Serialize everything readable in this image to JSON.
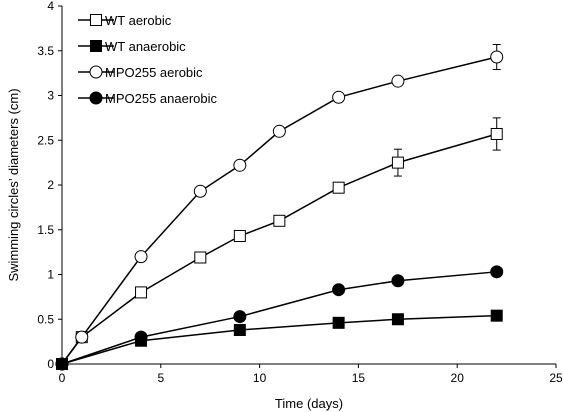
{
  "chart_data": {
    "type": "line",
    "xlabel": "Time (days)",
    "ylabel": "Swimming circles’ diameters (cm)",
    "xlim": [
      0,
      25
    ],
    "ylim": [
      0,
      4
    ],
    "xticks": [
      "0",
      "5",
      "10",
      "15",
      "20",
      "25"
    ],
    "yticks": [
      "0",
      "0.5",
      "1",
      "1.5",
      "2",
      "2.5",
      "3",
      "3.5",
      "4"
    ],
    "grid": false,
    "legend": "top-left",
    "series": [
      {
        "name": "WT aerobic",
        "marker": "open-square",
        "x": [
          0,
          1,
          4,
          7,
          9,
          11,
          14,
          17,
          22
        ],
        "y": [
          0,
          0.3,
          0.8,
          1.19,
          1.43,
          1.6,
          1.97,
          2.25,
          2.57
        ],
        "error": [
          0,
          0,
          0,
          0,
          0,
          0,
          0.05,
          0.15,
          0.18
        ]
      },
      {
        "name": "WT anaerobic",
        "marker": "filled-square",
        "x": [
          0,
          4,
          9,
          14,
          17,
          22
        ],
        "y": [
          0,
          0.26,
          0.38,
          0.46,
          0.5,
          0.54
        ],
        "error": [
          0,
          0,
          0,
          0,
          0,
          0
        ]
      },
      {
        "name": "MPO255 aerobic",
        "marker": "open-circle",
        "x": [
          0,
          1,
          4,
          7,
          9,
          11,
          14,
          17,
          22
        ],
        "y": [
          0,
          0.3,
          1.2,
          1.93,
          2.22,
          2.6,
          2.98,
          3.16,
          3.43
        ],
        "error": [
          0,
          0,
          0,
          0,
          0,
          0,
          0,
          0,
          0.14
        ]
      },
      {
        "name": "MPO255 anaerobic",
        "marker": "filled-circle",
        "x": [
          0,
          4,
          9,
          14,
          17,
          22
        ],
        "y": [
          0,
          0.3,
          0.53,
          0.83,
          0.93,
          1.03
        ],
        "error": [
          0,
          0,
          0,
          0,
          0,
          0
        ]
      }
    ]
  }
}
